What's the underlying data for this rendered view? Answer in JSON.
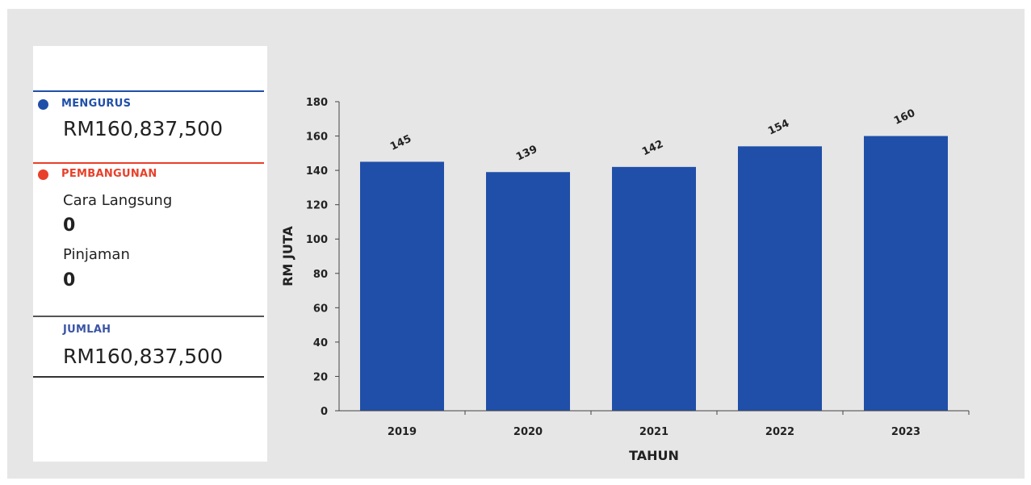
{
  "summary": {
    "mengurus": {
      "label": "MENGURUS",
      "amount": "RM160,837,500",
      "color": "#1f4fa8"
    },
    "pembangunan": {
      "label": "PEMBANGUNAN",
      "color": "#e8402a",
      "items": [
        {
          "label": "Cara Langsung",
          "value": "0"
        },
        {
          "label": "Pinjaman",
          "value": "0"
        }
      ]
    },
    "jumlah": {
      "label": "JUMLAH",
      "amount": "RM160,837,500",
      "color": "#3b55a5"
    }
  },
  "chart_data": {
    "type": "bar",
    "categories": [
      "2019",
      "2020",
      "2021",
      "2022",
      "2023"
    ],
    "values": [
      145,
      139,
      142,
      154,
      160
    ],
    "data_labels": [
      "145",
      "139",
      "142",
      "154",
      "160"
    ],
    "xlabel": "TAHUN",
    "ylabel": "RM JUTA",
    "ylim": [
      0,
      180
    ],
    "yticks": [
      "0",
      "20",
      "40",
      "60",
      "80",
      "100",
      "120",
      "140",
      "160",
      "180"
    ],
    "bar_color": "#1f4fa8",
    "grid": false
  }
}
